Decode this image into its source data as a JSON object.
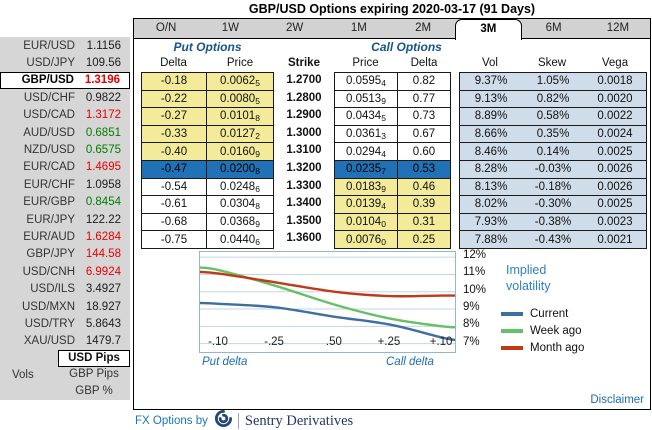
{
  "title": "GBP/USD Options expiring 2020-03-17 (91 Days)",
  "colors": {
    "accent_blue": "#2071b6",
    "band_yellow": "#f3eb9a",
    "analytics_bg": "#cfdcea",
    "up_green": "#007d00",
    "down_red": "#e80000",
    "neutral_value": "#1c1c1c",
    "link_blue": "#1b6db3",
    "header_blue": "#15558f"
  },
  "sidebar": {
    "pairs": [
      {
        "pair": "EUR/USD",
        "value": "1.1156",
        "direction": "flat",
        "selected": false
      },
      {
        "pair": "USD/JPY",
        "value": "109.56",
        "direction": "flat",
        "selected": false
      },
      {
        "pair": "GBP/USD",
        "value": "1.3196",
        "direction": "down",
        "selected": true
      },
      {
        "pair": "USD/CHF",
        "value": "0.9822",
        "direction": "flat",
        "selected": false
      },
      {
        "pair": "USD/CAD",
        "value": "1.3172",
        "direction": "down",
        "selected": false
      },
      {
        "pair": "AUD/USD",
        "value": "0.6851",
        "direction": "up",
        "selected": false
      },
      {
        "pair": "NZD/USD",
        "value": "0.6575",
        "direction": "up",
        "selected": false
      },
      {
        "pair": "EUR/CAD",
        "value": "1.4695",
        "direction": "down",
        "selected": false
      },
      {
        "pair": "EUR/CHF",
        "value": "1.0958",
        "direction": "flat",
        "selected": false
      },
      {
        "pair": "EUR/GBP",
        "value": "0.8454",
        "direction": "up",
        "selected": false
      },
      {
        "pair": "EUR/JPY",
        "value": "122.22",
        "direction": "flat",
        "selected": false
      },
      {
        "pair": "EUR/AUD",
        "value": "1.6284",
        "direction": "down",
        "selected": false
      },
      {
        "pair": "GBP/JPY",
        "value": "144.58",
        "direction": "down",
        "selected": false
      },
      {
        "pair": "USD/CNH",
        "value": "6.9924",
        "direction": "down",
        "selected": false
      },
      {
        "pair": "USD/ILS",
        "value": "3.4927",
        "direction": "flat",
        "selected": false
      },
      {
        "pair": "USD/MXN",
        "value": "18.927",
        "direction": "flat",
        "selected": false
      },
      {
        "pair": "USD/TRY",
        "value": "5.8643",
        "direction": "flat",
        "selected": false
      },
      {
        "pair": "XAU/USD",
        "value": "1479.7",
        "direction": "flat",
        "selected": false
      }
    ],
    "vols_label": "Vols",
    "pips_options": [
      {
        "label": "USD Pips",
        "selected": true
      },
      {
        "label": "GBP Pips",
        "selected": false
      },
      {
        "label": "GBP %",
        "selected": false
      }
    ]
  },
  "tabs": {
    "items": [
      "O/N",
      "1W",
      "2W",
      "1M",
      "2M",
      "3M",
      "6M",
      "12M"
    ],
    "active": "3M"
  },
  "options_table": {
    "put_header": "Put Options",
    "call_header": "Call Options",
    "columns": {
      "put_delta": "Delta",
      "put_price": "Price",
      "strike": "Strike",
      "call_price": "Price",
      "call_delta": "Delta",
      "vol": "Vol",
      "skew": "Skew",
      "vega": "Vega"
    },
    "rows": [
      {
        "put_delta": "-0.18",
        "put_price": "0.0062",
        "put_price_sub": "5",
        "strike": "1.2700",
        "call_price": "0.0595",
        "call_price_sub": "4",
        "call_delta": "0.82",
        "vol": "9.37%",
        "skew": "1.05%",
        "vega": "0.0018",
        "band": "putitm"
      },
      {
        "put_delta": "-0.22",
        "put_price": "0.0080",
        "put_price_sub": "5",
        "strike": "1.2800",
        "call_price": "0.0513",
        "call_price_sub": "9",
        "call_delta": "0.77",
        "vol": "9.13%",
        "skew": "0.82%",
        "vega": "0.0020",
        "band": "putitm"
      },
      {
        "put_delta": "-0.27",
        "put_price": "0.0101",
        "put_price_sub": "8",
        "strike": "1.2900",
        "call_price": "0.0434",
        "call_price_sub": "5",
        "call_delta": "0.73",
        "vol": "8.89%",
        "skew": "0.58%",
        "vega": "0.0022",
        "band": "putitm"
      },
      {
        "put_delta": "-0.33",
        "put_price": "0.0127",
        "put_price_sub": "2",
        "strike": "1.3000",
        "call_price": "0.0361",
        "call_price_sub": "3",
        "call_delta": "0.67",
        "vol": "8.66%",
        "skew": "0.35%",
        "vega": "0.0024",
        "band": "putitm"
      },
      {
        "put_delta": "-0.40",
        "put_price": "0.0160",
        "put_price_sub": "9",
        "strike": "1.3100",
        "call_price": "0.0294",
        "call_price_sub": "4",
        "call_delta": "0.60",
        "vol": "8.46%",
        "skew": "0.14%",
        "vega": "0.0025",
        "band": "putitm"
      },
      {
        "put_delta": "-0.47",
        "put_price": "0.0200",
        "put_price_sub": "8",
        "strike": "1.3200",
        "call_price": "0.0235",
        "call_price_sub": "7",
        "call_delta": "0.53",
        "vol": "8.28%",
        "skew": "-0.03%",
        "vega": "0.0026",
        "band": "atm"
      },
      {
        "put_delta": "-0.54",
        "put_price": "0.0248",
        "put_price_sub": "6",
        "strike": "1.3300",
        "call_price": "0.0183",
        "call_price_sub": "9",
        "call_delta": "0.46",
        "vol": "8.13%",
        "skew": "-0.18%",
        "vega": "0.0026",
        "band": "callitm"
      },
      {
        "put_delta": "-0.61",
        "put_price": "0.0304",
        "put_price_sub": "8",
        "strike": "1.3400",
        "call_price": "0.0139",
        "call_price_sub": "4",
        "call_delta": "0.39",
        "vol": "8.02%",
        "skew": "-0.30%",
        "vega": "0.0025",
        "band": "callitm"
      },
      {
        "put_delta": "-0.68",
        "put_price": "0.0368",
        "put_price_sub": "9",
        "strike": "1.3500",
        "call_price": "0.0104",
        "call_price_sub": "0",
        "call_delta": "0.31",
        "vol": "7.93%",
        "skew": "-0.38%",
        "vega": "0.0023",
        "band": "callitm"
      },
      {
        "put_delta": "-0.75",
        "put_price": "0.0440",
        "put_price_sub": "6",
        "strike": "1.3600",
        "call_price": "0.0076",
        "call_price_sub": "0",
        "call_delta": "0.25",
        "vol": "7.88%",
        "skew": "-0.43%",
        "vega": "0.0021",
        "band": "callitm"
      }
    ]
  },
  "chart_data": {
    "type": "line",
    "legend_title": "Implied volatility",
    "legend_position": "right",
    "grid": true,
    "x_tick_labels": [
      "-.10",
      "-.25",
      ".50",
      "+.25",
      "+.10"
    ],
    "x_left_label": "Put delta",
    "x_right_label": "Call delta",
    "y_ticks": [
      12,
      11,
      10,
      9,
      8,
      7
    ],
    "y_tick_labels": [
      "12%",
      "11%",
      "10%",
      "9%",
      "8%",
      "7%"
    ],
    "ylim": [
      6.4,
      12.3
    ],
    "x_fracs_including_edges": [
      0,
      0.074,
      0.292,
      0.525,
      0.739,
      0.942,
      1
    ],
    "series": [
      {
        "name": "Current",
        "color": "#3d6f9f",
        "values": [
          9.35,
          9.3,
          9.1,
          8.55,
          8.1,
          7.35,
          7.2
        ]
      },
      {
        "name": "Week ago",
        "color": "#66c066",
        "values": [
          11.4,
          11.25,
          10.35,
          9.25,
          8.45,
          8.0,
          7.95
        ]
      },
      {
        "name": "Month ago",
        "color": "#c03a1a",
        "values": [
          11.15,
          11.05,
          10.55,
          10.0,
          9.75,
          9.78,
          9.78
        ]
      }
    ]
  },
  "disclaimer": "Disclaimer",
  "footer": {
    "prefix": "FX Options by",
    "brand": "Sentry Derivatives"
  }
}
